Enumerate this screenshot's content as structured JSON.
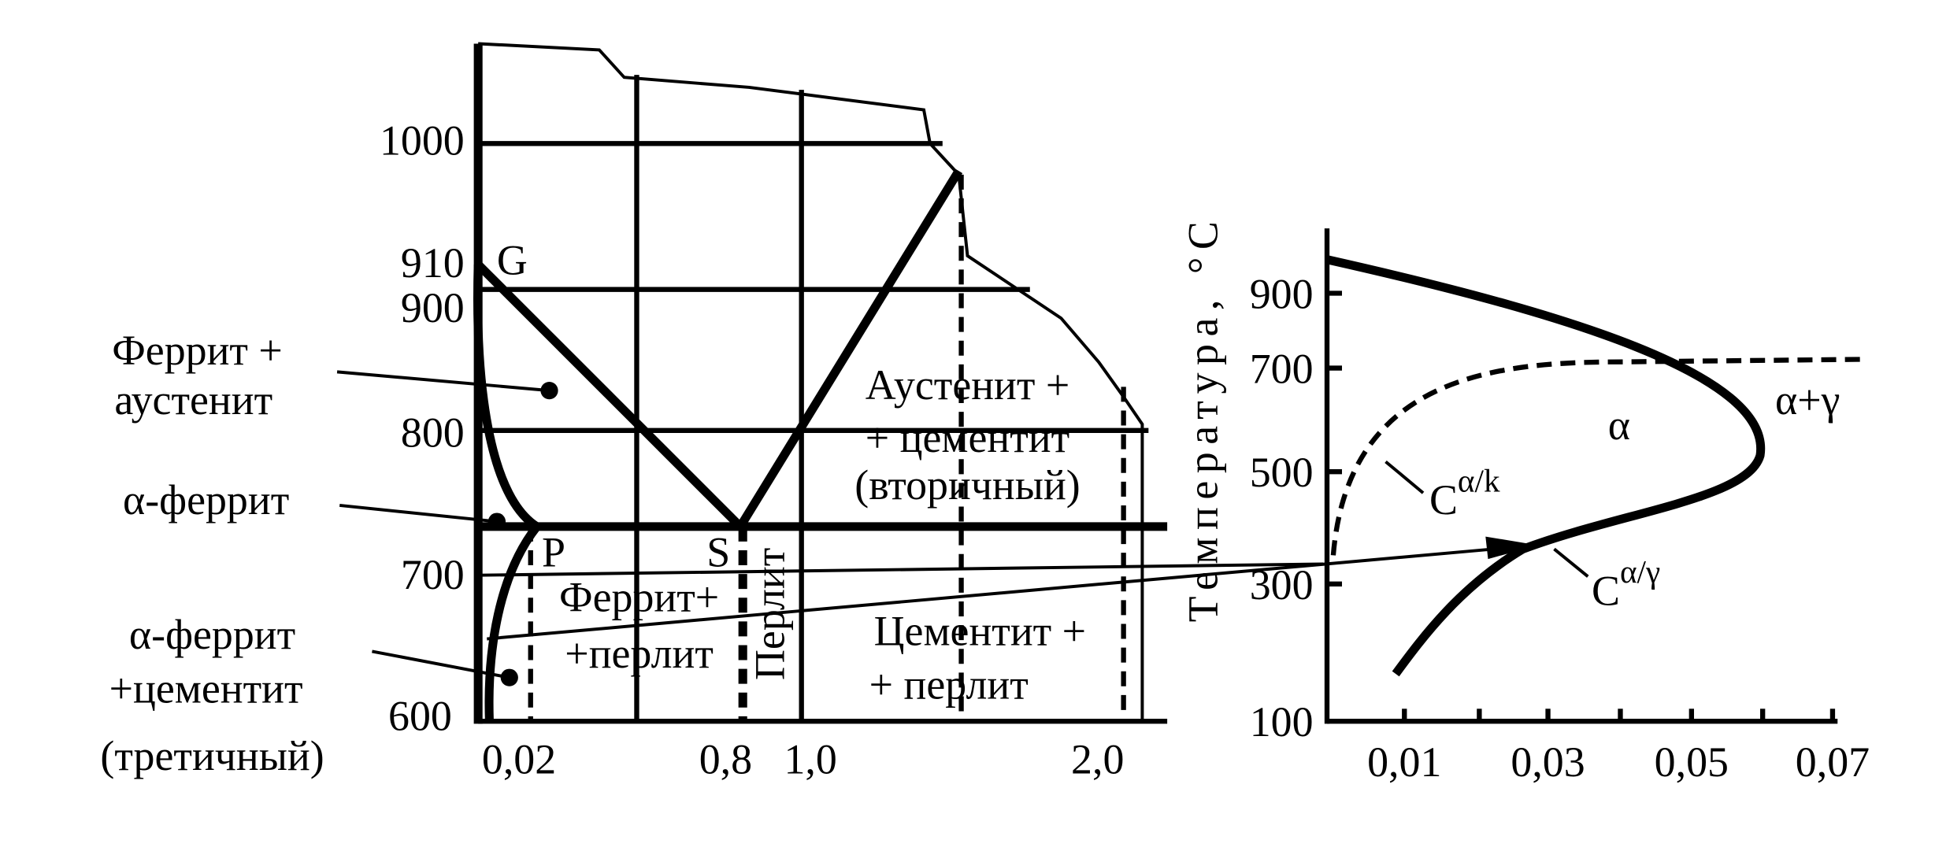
{
  "left_diagram": {
    "y_labels": [
      "1000",
      "910",
      "900",
      "800",
      "700",
      "600"
    ],
    "x_labels": [
      "0,02",
      "0,8",
      "1,0",
      "2,0"
    ],
    "points": [
      "G",
      "P",
      "S"
    ],
    "regions": {
      "austenite_cementite": [
        "Аустенит +",
        "+ цементит",
        "(вторичный)"
      ],
      "cementite_pearlite": [
        "Цементит +",
        "+ перлит"
      ],
      "ferrite_pearlite": [
        "Феррит+",
        "+перлит"
      ],
      "pearlite": "Перлит"
    },
    "callouts": {
      "ferrite_austenite": [
        "Феррит +",
        "аустенит"
      ],
      "alpha_ferrite": "α-феррит",
      "alpha_ferrite_cementite": [
        "α-феррит",
        "+цементит",
        "(третичный)"
      ]
    }
  },
  "right_diagram": {
    "y_axis_title": "Температура, °С",
    "y_labels": [
      "900",
      "700",
      "500",
      "300",
      "100"
    ],
    "x_labels": [
      "0,01",
      "0,03",
      "0,05",
      "0,07"
    ],
    "phase_labels": [
      "α",
      "α+γ"
    ],
    "curve_labels": [
      {
        "base": "C",
        "sup": "α/k"
      },
      {
        "base": "C",
        "sup": "α/γ"
      }
    ]
  }
}
